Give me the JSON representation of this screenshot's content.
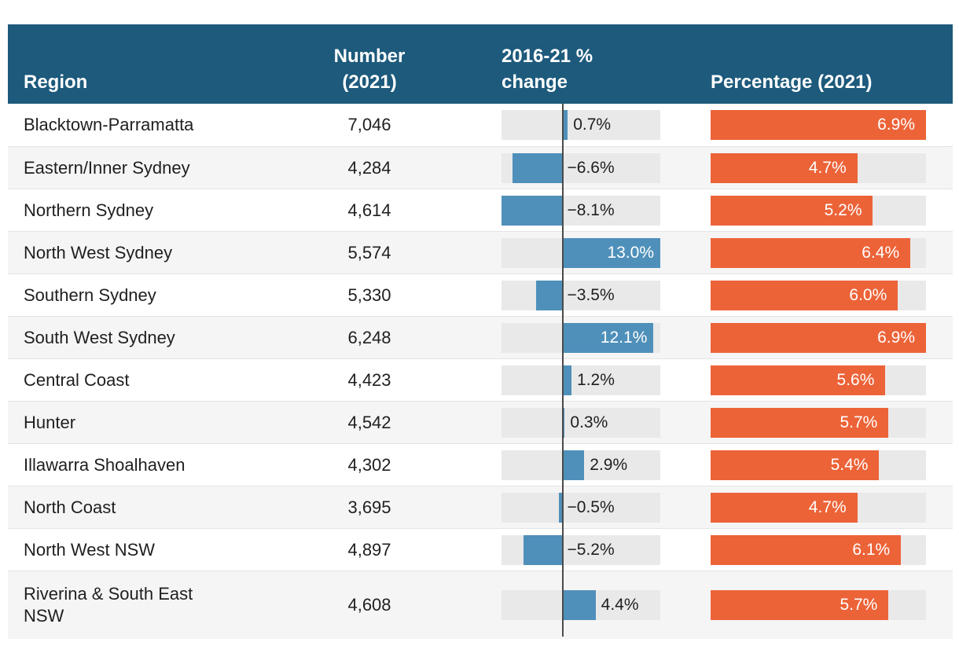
{
  "colors": {
    "header_bg": "#1d5a7c",
    "change_bar": "#4f90ba",
    "percentage_bar": "#ec6338",
    "bar_track": "#e9e9e9",
    "alt_row_bg": "#f5f5f5",
    "zero_line": "#4a4a4a"
  },
  "table": {
    "header": {
      "region": "Region",
      "number_line1": "Number",
      "number_line2": "(2021)",
      "change_line1": "2016-21 %",
      "change_line2": "change",
      "percentage": "Percentage (2021)"
    },
    "rows": [
      {
        "region": "Blacktown-Parramatta",
        "number": "7,046",
        "change": 0.7,
        "change_label": "0.7%",
        "percentage": 6.9,
        "percentage_label": "6.9%",
        "two_line": false
      },
      {
        "region": "Eastern/Inner Sydney",
        "number": "4,284",
        "change": -6.6,
        "change_label": "−6.6%",
        "percentage": 4.7,
        "percentage_label": "4.7%",
        "two_line": false
      },
      {
        "region": "Northern Sydney",
        "number": "4,614",
        "change": -8.1,
        "change_label": "−8.1%",
        "percentage": 5.2,
        "percentage_label": "5.2%",
        "two_line": false
      },
      {
        "region": "North West Sydney",
        "number": "5,574",
        "change": 13.0,
        "change_label": "13.0%",
        "percentage": 6.4,
        "percentage_label": "6.4%",
        "two_line": false
      },
      {
        "region": "Southern Sydney",
        "number": "5,330",
        "change": -3.5,
        "change_label": "−3.5%",
        "percentage": 6.0,
        "percentage_label": "6.0%",
        "two_line": false
      },
      {
        "region": "South West Sydney",
        "number": "6,248",
        "change": 12.1,
        "change_label": "12.1%",
        "percentage": 6.9,
        "percentage_label": "6.9%",
        "two_line": false
      },
      {
        "region": "Central Coast",
        "number": "4,423",
        "change": 1.2,
        "change_label": "1.2%",
        "percentage": 5.6,
        "percentage_label": "5.6%",
        "two_line": false
      },
      {
        "region": "Hunter",
        "number": "4,542",
        "change": 0.3,
        "change_label": "0.3%",
        "percentage": 5.7,
        "percentage_label": "5.7%",
        "two_line": false
      },
      {
        "region": "Illawarra Shoalhaven",
        "number": "4,302",
        "change": 2.9,
        "change_label": "2.9%",
        "percentage": 5.4,
        "percentage_label": "5.4%",
        "two_line": false
      },
      {
        "region": "North Coast",
        "number": "3,695",
        "change": -0.5,
        "change_label": "−0.5%",
        "percentage": 4.7,
        "percentage_label": "4.7%",
        "two_line": false
      },
      {
        "region": "North West NSW",
        "number": "4,897",
        "change": -5.2,
        "change_label": "−5.2%",
        "percentage": 6.1,
        "percentage_label": "6.1%",
        "two_line": false
      },
      {
        "region": "Riverina & South East NSW",
        "number": "4,608",
        "change": 4.4,
        "change_label": "4.4%",
        "percentage": 5.7,
        "percentage_label": "5.7%",
        "two_line": true
      }
    ]
  },
  "chart_data": {
    "type": "table",
    "title": "",
    "columns": [
      "Region",
      "Number (2021)",
      "2016-21 % change",
      "Percentage (2021)"
    ],
    "categories": [
      "Blacktown-Parramatta",
      "Eastern/Inner Sydney",
      "Northern Sydney",
      "North West Sydney",
      "Southern Sydney",
      "South West Sydney",
      "Central Coast",
      "Hunter",
      "Illawarra Shoalhaven",
      "North Coast",
      "North West NSW",
      "Riverina & South East NSW"
    ],
    "series": [
      {
        "name": "Number (2021)",
        "values": [
          7046,
          4284,
          4614,
          5574,
          5330,
          6248,
          4423,
          4542,
          4302,
          3695,
          4897,
          4608
        ]
      },
      {
        "name": "2016-21 % change",
        "type": "bar",
        "orientation": "horizontal",
        "xlim": [
          -8.1,
          13.0
        ],
        "zero_baseline": true,
        "values": [
          0.7,
          -6.6,
          -8.1,
          13.0,
          -3.5,
          12.1,
          1.2,
          0.3,
          2.9,
          -0.5,
          -5.2,
          4.4
        ]
      },
      {
        "name": "Percentage (2021)",
        "type": "bar",
        "orientation": "horizontal",
        "xlim": [
          0,
          6.9
        ],
        "values": [
          6.9,
          4.7,
          5.2,
          6.4,
          6.0,
          6.9,
          5.6,
          5.7,
          5.4,
          4.7,
          6.1,
          5.7
        ]
      }
    ],
    "legend": "none",
    "grid": "off"
  }
}
